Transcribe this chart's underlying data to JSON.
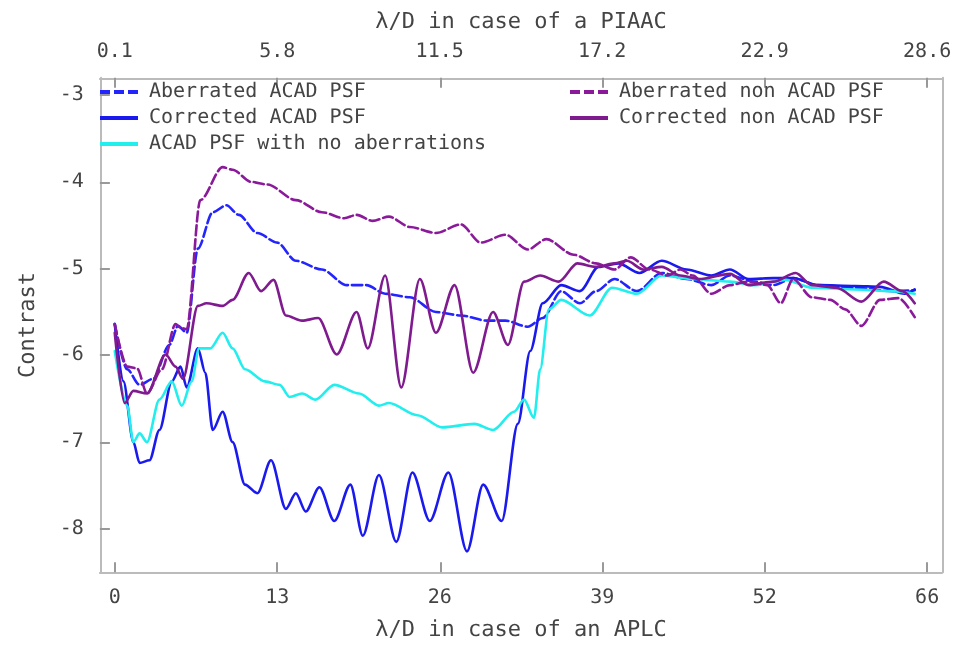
{
  "chart_data": {
    "type": "line",
    "xlabel": "λ/D in case of an APLC",
    "x2label": "λ/D in case of a PIAAC",
    "ylabel": "Contrast",
    "xlim": [
      -1.2,
      66.7
    ],
    "xticks": [
      {
        "value": 0,
        "label": "0"
      },
      {
        "value": 13.1,
        "label": "13"
      },
      {
        "value": 26.2,
        "label": "26"
      },
      {
        "value": 39.3,
        "label": "39"
      },
      {
        "value": 52.4,
        "label": "52"
      },
      {
        "value": 65.5,
        "label": "66"
      }
    ],
    "x2lim": [
      -0.42,
      29.12
    ],
    "x2ticks": [
      0.1,
      5.8,
      11.5,
      17.2,
      22.9,
      28.6
    ],
    "ylim": [
      -8.5,
      -2.8
    ],
    "yticks": [
      -3,
      -4,
      -5,
      -6,
      -7,
      -8
    ],
    "grid": false,
    "legend": "top",
    "marker": "none",
    "series": [
      {
        "name": "Aberrated ACAD PSF",
        "color": "#2424ff",
        "line_style": "dashed",
        "x": [
          0,
          1,
          2,
          3.1,
          4.4,
          5.1,
          5.8,
          6.7,
          7.9,
          9,
          10,
          11.5,
          13.1,
          14.6,
          16.7,
          18.7,
          20.3,
          21.8,
          23.8,
          25.9,
          27.9,
          30,
          31.5,
          33.3,
          34.5,
          36,
          37.5,
          38.8,
          40.3,
          42.1,
          44.1,
          46.1,
          48.1,
          49.6,
          51.6,
          53.1,
          54.7,
          56.7,
          59.7,
          62.7,
          64.5
        ],
        "values": [
          -5.64,
          -6.16,
          -6.34,
          -6.27,
          -5.88,
          -5.66,
          -5.74,
          -4.77,
          -4.35,
          -4.27,
          -4.38,
          -4.59,
          -4.7,
          -4.91,
          -5.01,
          -5.19,
          -5.19,
          -5.29,
          -5.33,
          -5.5,
          -5.54,
          -5.6,
          -5.6,
          -5.67,
          -5.57,
          -5.26,
          -5.4,
          -5.26,
          -5.12,
          -5.26,
          -5.05,
          -5.12,
          -5.19,
          -5.08,
          -5.15,
          -5.19,
          -5.11,
          -5.19,
          -5.22,
          -5.26,
          -5.25
        ]
      },
      {
        "name": "Corrected ACAD PSF",
        "color": "#1a1aee",
        "line_style": "solid",
        "x": [
          0,
          0.7,
          1.5,
          2,
          2.8,
          3.6,
          4.6,
          5.3,
          5.8,
          6.7,
          7.3,
          7.9,
          8.7,
          9.5,
          10.5,
          11.5,
          12.6,
          13.8,
          14.6,
          15.4,
          16.5,
          17.7,
          19,
          20,
          21.3,
          22.7,
          24,
          25.4,
          26.9,
          28.4,
          29.7,
          31.2,
          32.5,
          33.5,
          34.5,
          36,
          37.5,
          39,
          40.6,
          42.3,
          44.1,
          46.1,
          48.1,
          49.6,
          51.1,
          53.1,
          54.7,
          56.7,
          59.7,
          61.7,
          63.7,
          64.5
        ],
        "values": [
          -5.64,
          -6.3,
          -7.0,
          -7.24,
          -7.21,
          -6.86,
          -6.3,
          -6.13,
          -6.37,
          -5.92,
          -6.2,
          -6.86,
          -6.65,
          -7.0,
          -7.49,
          -7.59,
          -7.21,
          -7.77,
          -7.59,
          -7.8,
          -7.52,
          -7.91,
          -7.49,
          -8.08,
          -7.38,
          -8.15,
          -7.35,
          -7.91,
          -7.35,
          -8.26,
          -7.49,
          -7.91,
          -6.79,
          -5.95,
          -5.4,
          -5.19,
          -5.26,
          -4.98,
          -4.94,
          -5.05,
          -4.91,
          -5.01,
          -5.08,
          -5.01,
          -5.12,
          -5.11,
          -5.11,
          -5.19,
          -5.2,
          -5.21,
          -5.29,
          -5.24
        ]
      },
      {
        "name": "ACAD PSF with no aberrations",
        "color": "#22eeee",
        "line_style": "solid",
        "x": [
          0,
          1,
          1.5,
          2,
          2.6,
          3.6,
          4.6,
          5.4,
          6.2,
          6.8,
          7.7,
          8.7,
          9.5,
          10.5,
          12.1,
          13.3,
          14.1,
          15.1,
          16.2,
          17.7,
          19.7,
          21.3,
          22.1,
          24.4,
          26.4,
          29,
          30.5,
          32.2,
          33,
          33.8,
          34.3,
          35,
          36,
          38.3,
          40.1,
          42.1,
          44.1,
          46.6,
          49.6,
          51.6,
          54.1,
          56.2,
          59.7,
          62.7,
          64.5
        ],
        "values": [
          -5.95,
          -6.58,
          -7.0,
          -6.9,
          -7.0,
          -6.51,
          -6.3,
          -6.58,
          -6.3,
          -5.92,
          -5.92,
          -5.74,
          -5.92,
          -6.16,
          -6.3,
          -6.34,
          -6.48,
          -6.44,
          -6.51,
          -6.34,
          -6.44,
          -6.58,
          -6.55,
          -6.69,
          -6.83,
          -6.79,
          -6.86,
          -6.65,
          -6.51,
          -6.72,
          -6.16,
          -5.47,
          -5.36,
          -5.54,
          -5.22,
          -5.29,
          -5.08,
          -5.12,
          -5.15,
          -5.19,
          -5.13,
          -5.22,
          -5.24,
          -5.26,
          -5.29
        ]
      },
      {
        "name": "Aberrated non ACAD PSF",
        "color": "#8b1a9b",
        "line_style": "dashed",
        "x": [
          0,
          1,
          1.8,
          2.6,
          3.8,
          4.9,
          5.3,
          5.8,
          6.9,
          8.7,
          9.5,
          11,
          12.3,
          14.6,
          16.7,
          18.5,
          19.5,
          20.8,
          22.1,
          23.8,
          25.9,
          27.9,
          29.5,
          31.5,
          33.3,
          34.8,
          37,
          38.8,
          40.3,
          41.6,
          43.1,
          44.6,
          45.6,
          46.6,
          48.1,
          49.6,
          51.1,
          52.6,
          53.7,
          54.7,
          56.2,
          57.7,
          58.9,
          60.2,
          61.7,
          63.2,
          64.5
        ],
        "values": [
          -5.64,
          -6.13,
          -6.15,
          -6.44,
          -6.16,
          -5.64,
          -5.68,
          -5.7,
          -4.21,
          -3.83,
          -3.86,
          -4.0,
          -4.03,
          -4.21,
          -4.35,
          -4.42,
          -4.38,
          -4.45,
          -4.4,
          -4.52,
          -4.59,
          -4.49,
          -4.7,
          -4.61,
          -4.78,
          -4.66,
          -4.84,
          -4.94,
          -5.01,
          -4.87,
          -5.01,
          -5.08,
          -5.01,
          -5.08,
          -5.29,
          -5.19,
          -5.15,
          -5.19,
          -5.4,
          -5.12,
          -5.33,
          -5.36,
          -5.47,
          -5.66,
          -5.36,
          -5.34,
          -5.56
        ]
      },
      {
        "name": "Corrected non ACAD PSF",
        "color": "#7f1a8f",
        "line_style": "solid",
        "x": [
          0,
          0.8,
          1.5,
          2.6,
          4.1,
          4.9,
          5.5,
          6.7,
          7.4,
          8.7,
          9.5,
          10.8,
          11.8,
          12.8,
          13.8,
          15.1,
          16.4,
          17.9,
          19.5,
          20.4,
          21.8,
          23.1,
          24.6,
          25.9,
          27.4,
          28.9,
          30.5,
          31.7,
          33,
          34.3,
          35.8,
          37.3,
          38.8,
          40.3,
          41.3,
          42.6,
          44.1,
          45.6,
          47.1,
          49.6,
          51.1,
          53.1,
          54.9,
          56.2,
          58.2,
          60.2,
          62,
          63.5,
          64.5
        ],
        "values": [
          -5.74,
          -6.55,
          -6.41,
          -6.44,
          -5.99,
          -6.13,
          -6.27,
          -5.43,
          -5.4,
          -5.43,
          -5.36,
          -5.05,
          -5.26,
          -5.13,
          -5.54,
          -5.6,
          -5.57,
          -5.99,
          -5.5,
          -5.92,
          -5.08,
          -6.37,
          -5.12,
          -5.74,
          -5.19,
          -6.2,
          -5.5,
          -5.88,
          -5.15,
          -5.08,
          -5.15,
          -4.94,
          -4.98,
          -4.94,
          -4.91,
          -5.01,
          -4.98,
          -5.08,
          -5.12,
          -5.06,
          -5.19,
          -5.15,
          -5.05,
          -5.19,
          -5.22,
          -5.38,
          -5.15,
          -5.26,
          -5.4
        ]
      }
    ]
  }
}
